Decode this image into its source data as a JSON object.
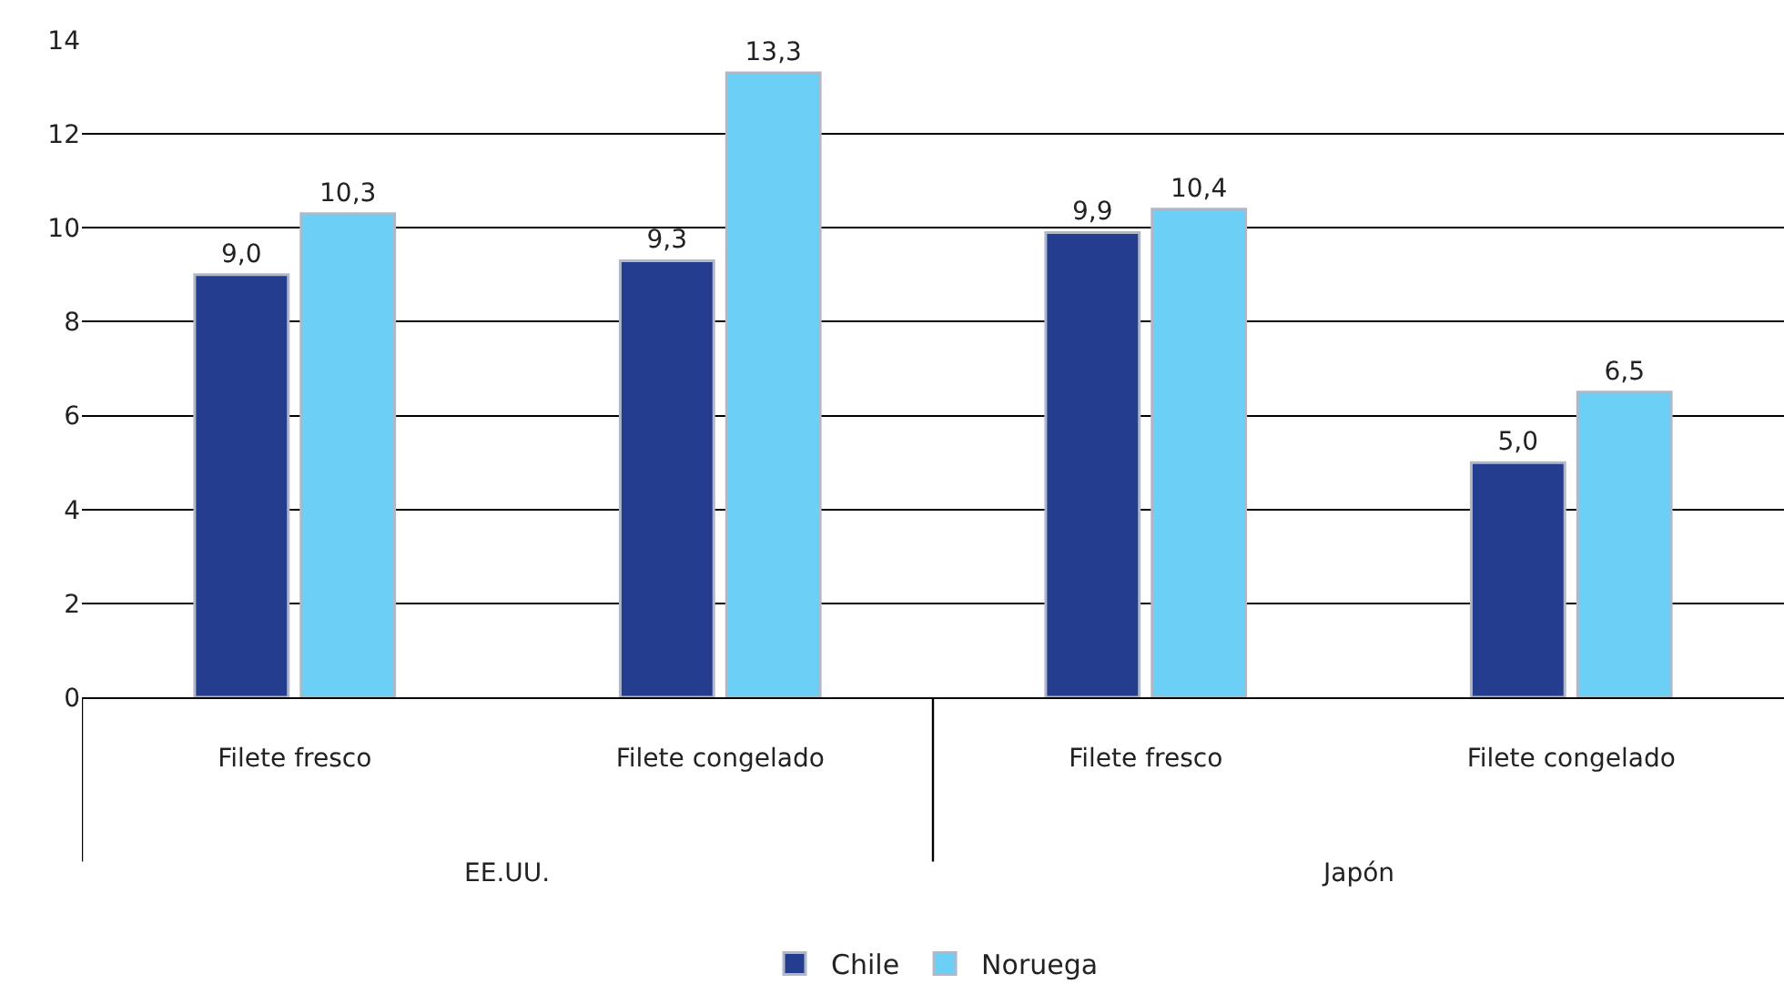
{
  "chart_data": {
    "type": "bar",
    "categories": [
      "Filete fresco",
      "Filete congelado",
      "Filete fresco",
      "Filete congelado"
    ],
    "series": [
      {
        "name": "Chile",
        "color": "#253d8e",
        "values": [
          9.0,
          9.3,
          9.9,
          5.0
        ],
        "value_labels": [
          "9,0",
          "9,3",
          "9,9",
          "5,0"
        ]
      },
      {
        "name": "Noruega",
        "color": "#6ccff6",
        "values": [
          10.3,
          13.3,
          10.4,
          6.5
        ],
        "value_labels": [
          "10,3",
          "13,3",
          "10,4",
          "6,5"
        ]
      }
    ],
    "annotations": [
      "EE.UU.",
      "Japón"
    ],
    "ylim": [
      0,
      14
    ],
    "yticks": [
      0,
      2,
      4,
      6,
      8,
      10,
      12,
      14
    ],
    "grid": "y",
    "legend": "bottom"
  }
}
